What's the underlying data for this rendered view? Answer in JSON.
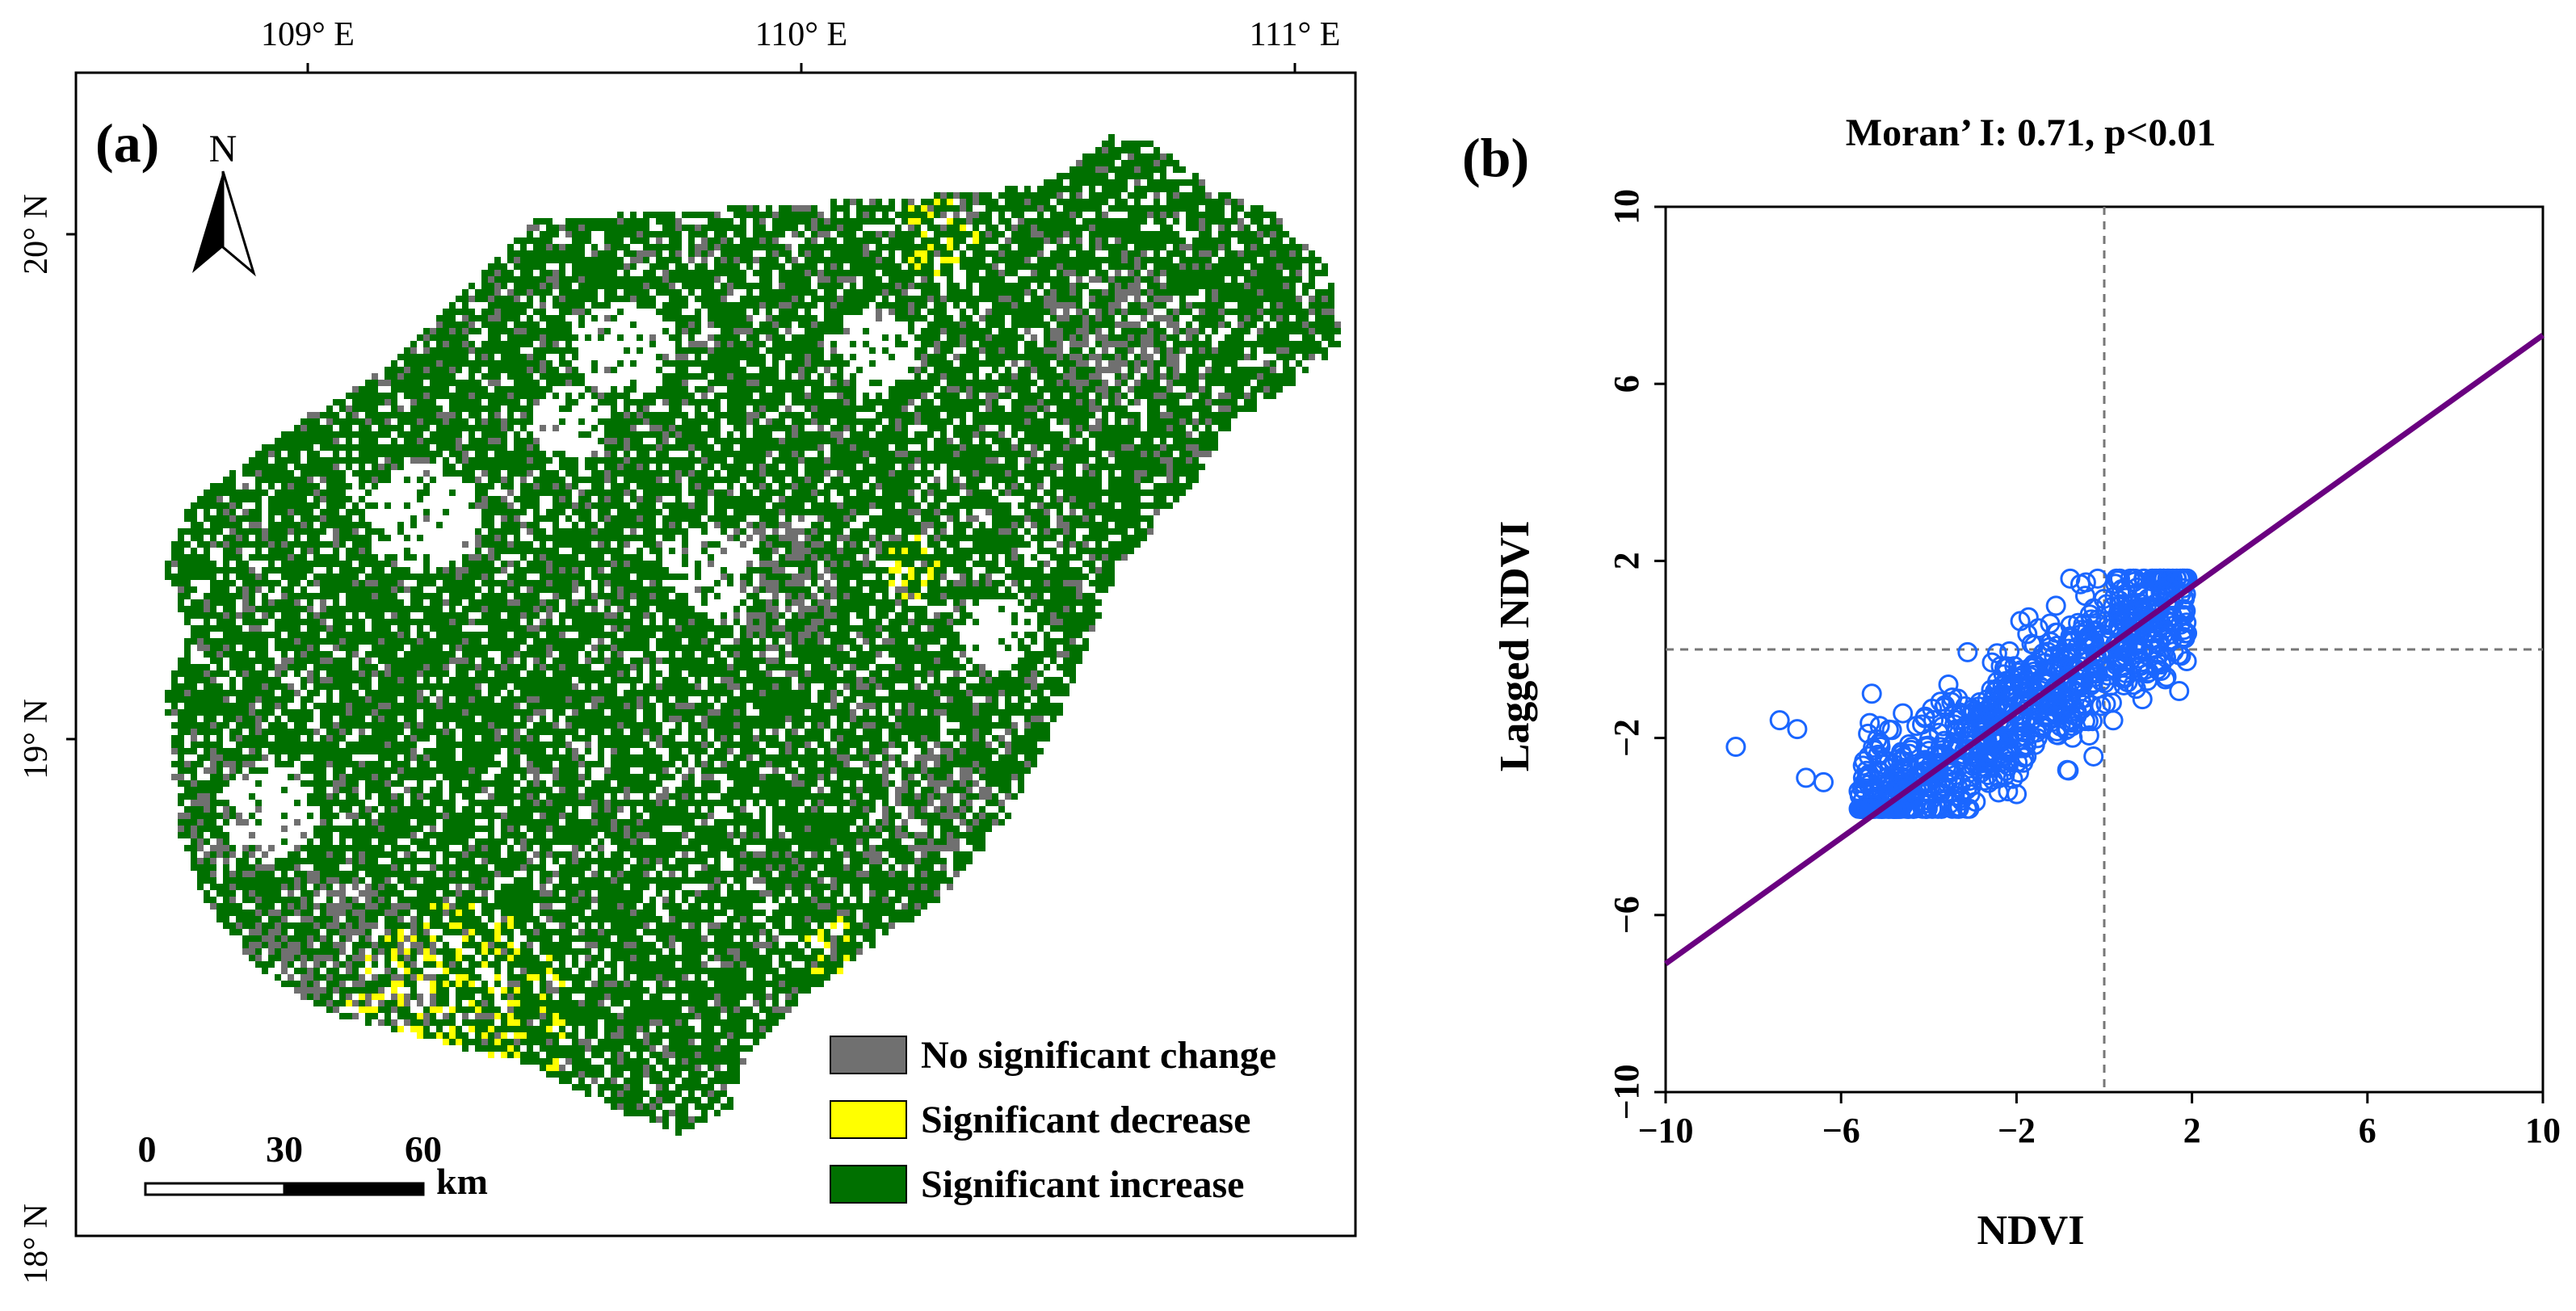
{
  "panel_a": {
    "label": "(a)",
    "north_arrow": "N",
    "lon_ticks": [
      "109° E",
      "110° E",
      "111° E"
    ],
    "lat_ticks": [
      "20° N",
      "19° N",
      "18° N"
    ],
    "scalebar": {
      "ticks": [
        "0",
        "30",
        "60"
      ],
      "unit": "km"
    },
    "legend": [
      {
        "label": "No significant change",
        "color": "#707070"
      },
      {
        "label": "Significant decrease",
        "color": "#ffff00"
      },
      {
        "label": "Significant increase",
        "color": "#007000"
      }
    ]
  },
  "chart_data": {
    "type": "scatter",
    "panel_label": "(b)",
    "title": "Moran’ I: 0.71, p<0.01",
    "xlabel": "NDVI",
    "ylabel": "Lagged NDVI",
    "xlim": [
      -10,
      10
    ],
    "ylim": [
      -10,
      10
    ],
    "xticks": [
      "−10",
      "−6",
      "−2",
      "2",
      "6",
      "10"
    ],
    "yticks": [
      "−10",
      "−6",
      "−2",
      "2",
      "6",
      "10"
    ],
    "reference_lines": {
      "x": 0,
      "y": 0
    },
    "regression": {
      "slope": 0.71,
      "intercept": 0,
      "color": "#6a0080"
    },
    "marker_color": "#1a66ff",
    "points": [
      [
        -8.4,
        -2.2
      ],
      [
        -7.4,
        -1.6
      ],
      [
        -7.0,
        -1.8
      ],
      [
        -6.8,
        -2.9
      ],
      [
        -6.4,
        -3.0
      ],
      [
        -5.5,
        -2.9
      ],
      [
        -5.3,
        -1.0
      ],
      [
        -5.1,
        -2.2
      ],
      [
        -5.6,
        -3.2
      ],
      [
        -5.5,
        -3.4
      ]
    ],
    "point_cloud": {
      "x_center": -2.0,
      "x_range": [
        -5.6,
        1.9
      ],
      "y_spread": 1.1,
      "y_range": [
        -3.6,
        1.6
      ],
      "count": 900
    }
  }
}
